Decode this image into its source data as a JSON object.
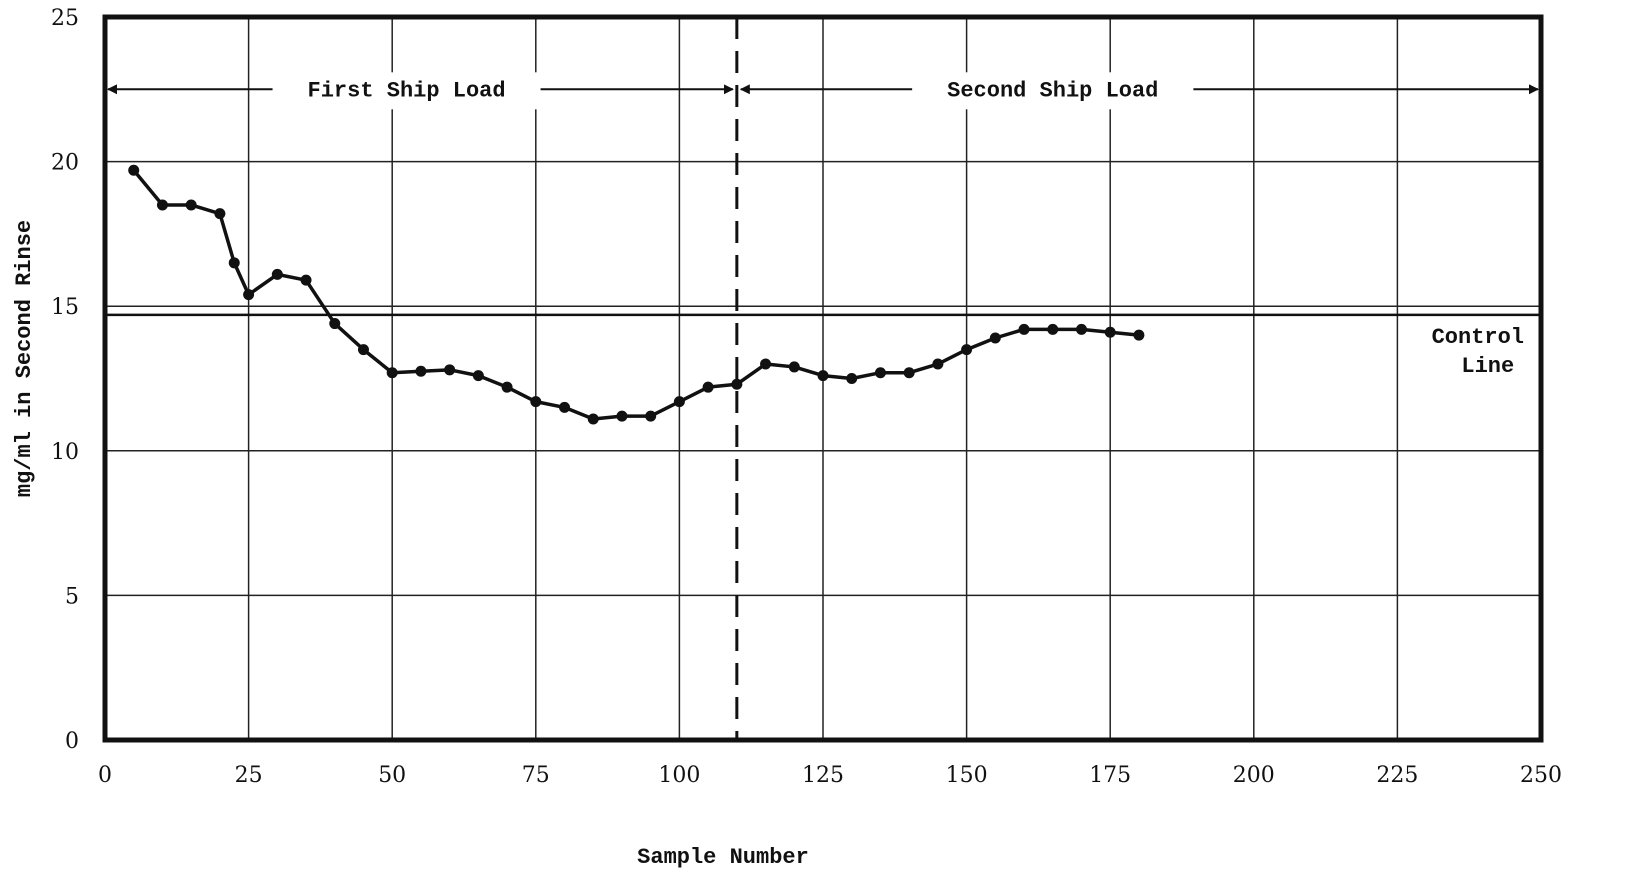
{
  "chart_data": {
    "type": "line",
    "title": "",
    "xlabel": "Sample Number",
    "ylabel": "mg/ml in Second Rinse",
    "xlim": [
      0,
      250
    ],
    "ylim": [
      0,
      25
    ],
    "x_ticks": [
      0,
      25,
      50,
      75,
      100,
      125,
      150,
      175,
      200,
      225,
      250
    ],
    "y_ticks": [
      0,
      5,
      10,
      15,
      20,
      25
    ],
    "grid": true,
    "series": [
      {
        "x": [
          5,
          10,
          15,
          20,
          22.5,
          25,
          30,
          35,
          40,
          45,
          50,
          55,
          60,
          65,
          70,
          75,
          80,
          85,
          90,
          95,
          100,
          105,
          110,
          115,
          120,
          125,
          130,
          135,
          140,
          145,
          150,
          155,
          160,
          165,
          170,
          175,
          180
        ],
        "values": [
          19.7,
          18.5,
          18.5,
          18.2,
          16.5,
          15.4,
          16.1,
          15.9,
          14.4,
          13.5,
          12.7,
          12.75,
          12.8,
          12.6,
          12.2,
          11.7,
          11.5,
          11.1,
          11.2,
          11.2,
          11.7,
          12.2,
          12.3,
          13.0,
          12.9,
          12.6,
          12.5,
          12.7,
          12.7,
          13.0,
          13.5,
          13.9,
          14.2,
          14.2,
          14.2,
          14.1,
          14.0
        ]
      }
    ],
    "control_line": {
      "y": 14.7,
      "label_line1": "Control",
      "label_line2": "Line"
    },
    "divider_x": 110,
    "load_y": 22.5,
    "annotations": {
      "first_load": "First Ship Load",
      "second_load": "Second Ship Load"
    }
  }
}
